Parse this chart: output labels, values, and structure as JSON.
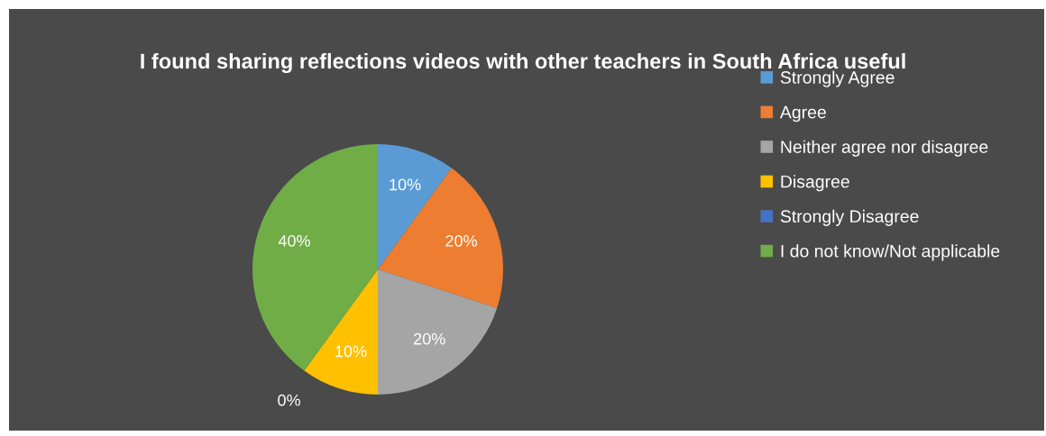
{
  "chart_data": {
    "type": "pie",
    "title": "I found sharing reflections videos with other teachers in South Africa useful",
    "categories": [
      "Strongly Agree",
      "Agree",
      "Neither agree nor disagree",
      "Disagree",
      "Strongly Disagree",
      "I do not know/Not applicable"
    ],
    "values": [
      10,
      20,
      20,
      10,
      0,
      40
    ],
    "colors": [
      "#5b9bd5",
      "#ed7d31",
      "#a5a5a5",
      "#ffc000",
      "#4472c4",
      "#70ad47"
    ],
    "value_labels": [
      "10%",
      "20%",
      "20%",
      "10%",
      "0%",
      "40%"
    ],
    "legend": "right"
  }
}
